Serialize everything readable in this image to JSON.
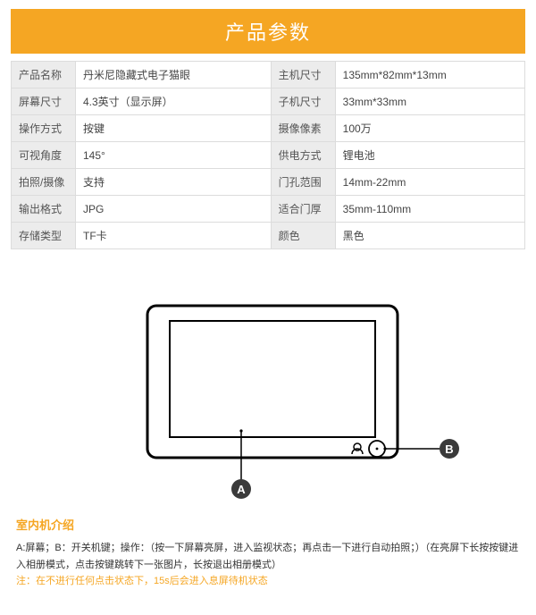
{
  "header": {
    "title": "产品参数"
  },
  "specs": {
    "rows": [
      {
        "l1": "产品名称",
        "v1": "丹米尼隐藏式电子猫眼",
        "l2": "主机尺寸",
        "v2": "135mm*82mm*13mm"
      },
      {
        "l1": "屏幕尺寸",
        "v1": "4.3英寸（显示屏）",
        "l2": "子机尺寸",
        "v2": "33mm*33mm"
      },
      {
        "l1": "操作方式",
        "v1": "按键",
        "l2": "摄像像素",
        "v2": "100万"
      },
      {
        "l1": "可视角度",
        "v1": "145°",
        "l2": "供电方式",
        "v2": "锂电池"
      },
      {
        "l1": "拍照/摄像",
        "v1": "支持",
        "l2": "门孔范围",
        "v2": "14mm-22mm"
      },
      {
        "l1": "输出格式",
        "v1": "JPG",
        "l2": "适合门厚",
        "v2": "35mm-110mm"
      },
      {
        "l1": "存储类型",
        "v1": "TF卡",
        "l2": "颜色",
        "v2": "黑色"
      }
    ]
  },
  "diagram": {
    "labelA": "A",
    "labelB": "B",
    "outer_stroke": "#000000",
    "inner_stroke": "#000000",
    "line_stroke": "#000000",
    "bg": "#ffffff"
  },
  "intro": {
    "title": "室内机介绍",
    "text": "A:屏幕；B：开关机键；操作：（按一下屏幕亮屏，进入监视状态；再点击一下进行自动拍照；）（在亮屏下长按按键进入相册模式，点击按键跳转下一张图片，长按退出相册模式）",
    "note": "注：在不进行任何点击状态下，15s后会进入息屏待机状态"
  }
}
